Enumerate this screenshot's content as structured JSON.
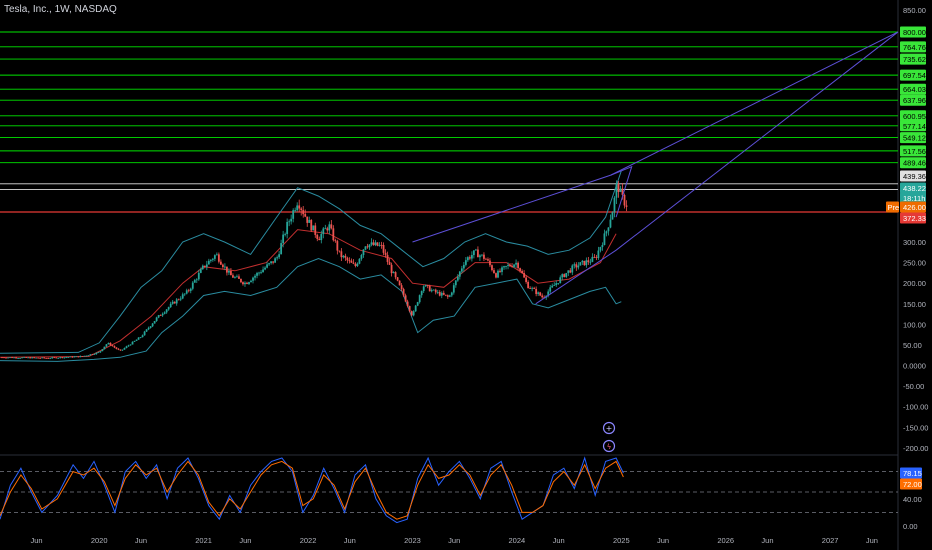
{
  "header": {
    "symbol": "Tesla, Inc., 1W, NASDAQ"
  },
  "colors": {
    "background": "#000000",
    "up": "#26a69a",
    "down": "#ef5350",
    "level": "#00e600",
    "level_tag": "#39e639",
    "red_line": "#e53935",
    "white_line": "#e0e0e0",
    "trend": "#5c4fd6",
    "band": "#2a8ca0",
    "mid": "#c22f2f",
    "stoch_k": "#2962ff",
    "stoch_d": "#ff6d00"
  },
  "chart_data": [
    {
      "type": "candlestick",
      "panel": "price",
      "y_ticks": [
        "850.00",
        "300.00",
        "250.00",
        "200.00",
        "150.00",
        "100.00",
        "50.00",
        "0.0000",
        "-50.00",
        "-100.00",
        "-150.00",
        "-200.00"
      ],
      "ylim": [
        -210,
        850
      ],
      "x_labels": [
        "Jun",
        "2020",
        "Jun",
        "2021",
        "Jun",
        "2022",
        "Jun",
        "2023",
        "Jun",
        "2024",
        "Jun",
        "2025",
        "Jun",
        "2026",
        "Jun",
        "2027",
        "Jun"
      ],
      "xlim": [
        2019.05,
        2027.65
      ],
      "horizontal_levels": [
        {
          "price": 800.0,
          "label": "800.00",
          "color": "#00e600"
        },
        {
          "price": 764.76,
          "label": "764.76",
          "color": "#00e600"
        },
        {
          "price": 735.62,
          "label": "735.62",
          "color": "#00e600"
        },
        {
          "price": 697.54,
          "label": "697.54",
          "color": "#00e600"
        },
        {
          "price": 664.03,
          "label": "664.03",
          "color": "#00e600"
        },
        {
          "price": 637.96,
          "label": "637.96",
          "color": "#00e600"
        },
        {
          "price": 600.95,
          "label": "600.95",
          "color": "#00e600"
        },
        {
          "price": 577.14,
          "label": "577.14",
          "color": "#00e600"
        },
        {
          "price": 549.12,
          "label": "549.12",
          "color": "#00e600"
        },
        {
          "price": 517.56,
          "label": "517.56",
          "color": "#00e600"
        },
        {
          "price": 489.46,
          "label": "489.46",
          "color": "#00e600"
        },
        {
          "price": 439.36,
          "label": "439.36",
          "color": "#e0e0e0"
        },
        {
          "price": 426.0,
          "label": "426.00",
          "color": "#e0e0e0"
        },
        {
          "price": 372.33,
          "label": "372.33",
          "color": "#e53935"
        }
      ],
      "price_tags": [
        {
          "label": "439.36",
          "bg": "#e0e0e0",
          "fg": "#000000"
        },
        {
          "label": "438.22",
          "bg": "#26a69a",
          "fg": "#ffffff"
        },
        {
          "label": "18:11h",
          "bg": "#26a69a",
          "fg": "#ffffff"
        },
        {
          "label": "426.00",
          "bg": "#ef6c00",
          "fg": "#ffffff",
          "prefix": "Pre"
        },
        {
          "label": "372.33",
          "bg": "#e53935",
          "fg": "#ffffff"
        }
      ],
      "close_path": [
        [
          2019.05,
          20
        ],
        [
          2019.5,
          18
        ],
        [
          2019.83,
          22
        ],
        [
          2020.0,
          32
        ],
        [
          2020.08,
          55
        ],
        [
          2020.2,
          35
        ],
        [
          2020.4,
          70
        ],
        [
          2020.55,
          115
        ],
        [
          2020.7,
          150
        ],
        [
          2020.85,
          180
        ],
        [
          2021.0,
          240
        ],
        [
          2021.12,
          270
        ],
        [
          2021.25,
          220
        ],
        [
          2021.4,
          200
        ],
        [
          2021.55,
          230
        ],
        [
          2021.7,
          260
        ],
        [
          2021.8,
          340
        ],
        [
          2021.9,
          400
        ],
        [
          2022.0,
          350
        ],
        [
          2022.1,
          310
        ],
        [
          2022.2,
          340
        ],
        [
          2022.3,
          270
        ],
        [
          2022.45,
          240
        ],
        [
          2022.55,
          295
        ],
        [
          2022.7,
          290
        ],
        [
          2022.8,
          230
        ],
        [
          2022.9,
          180
        ],
        [
          2023.0,
          120
        ],
        [
          2023.1,
          195
        ],
        [
          2023.2,
          180
        ],
        [
          2023.35,
          165
        ],
        [
          2023.5,
          255
        ],
        [
          2023.6,
          275
        ],
        [
          2023.7,
          260
        ],
        [
          2023.8,
          220
        ],
        [
          2023.9,
          240
        ],
        [
          2024.0,
          250
        ],
        [
          2024.1,
          195
        ],
        [
          2024.25,
          165
        ],
        [
          2024.3,
          180
        ],
        [
          2024.45,
          220
        ],
        [
          2024.55,
          240
        ],
        [
          2024.65,
          250
        ],
        [
          2024.75,
          260
        ],
        [
          2024.85,
          320
        ],
        [
          2024.92,
          380
        ],
        [
          2024.96,
          440
        ],
        [
          2025.0,
          410
        ],
        [
          2025.02,
          400
        ],
        [
          2025.05,
          390
        ]
      ],
      "bollinger_upper": [
        [
          2019.05,
          30
        ],
        [
          2019.8,
          32
        ],
        [
          2020.0,
          55
        ],
        [
          2020.2,
          120
        ],
        [
          2020.4,
          190
        ],
        [
          2020.6,
          230
        ],
        [
          2020.8,
          300
        ],
        [
          2021.0,
          320
        ],
        [
          2021.2,
          300
        ],
        [
          2021.45,
          270
        ],
        [
          2021.7,
          360
        ],
        [
          2021.9,
          430
        ],
        [
          2022.1,
          410
        ],
        [
          2022.3,
          380
        ],
        [
          2022.5,
          340
        ],
        [
          2022.7,
          320
        ],
        [
          2022.9,
          280
        ],
        [
          2023.1,
          240
        ],
        [
          2023.3,
          260
        ],
        [
          2023.5,
          300
        ],
        [
          2023.7,
          320
        ],
        [
          2023.9,
          300
        ],
        [
          2024.1,
          290
        ],
        [
          2024.3,
          270
        ],
        [
          2024.5,
          280
        ],
        [
          2024.7,
          310
        ],
        [
          2024.85,
          360
        ],
        [
          2025.0,
          470
        ]
      ],
      "bollinger_lower": [
        [
          2019.05,
          12
        ],
        [
          2019.6,
          10
        ],
        [
          2019.95,
          15
        ],
        [
          2020.2,
          20
        ],
        [
          2020.45,
          35
        ],
        [
          2020.6,
          80
        ],
        [
          2020.8,
          120
        ],
        [
          2021.0,
          170
        ],
        [
          2021.2,
          180
        ],
        [
          2021.45,
          170
        ],
        [
          2021.7,
          190
        ],
        [
          2021.9,
          240
        ],
        [
          2022.1,
          260
        ],
        [
          2022.3,
          240
        ],
        [
          2022.5,
          210
        ],
        [
          2022.7,
          220
        ],
        [
          2022.9,
          180
        ],
        [
          2023.05,
          80
        ],
        [
          2023.2,
          110
        ],
        [
          2023.4,
          120
        ],
        [
          2023.6,
          190
        ],
        [
          2023.8,
          200
        ],
        [
          2024.0,
          210
        ],
        [
          2024.15,
          150
        ],
        [
          2024.3,
          140
        ],
        [
          2024.5,
          160
        ],
        [
          2024.7,
          180
        ],
        [
          2024.85,
          190
        ],
        [
          2024.95,
          150
        ],
        [
          2025.0,
          155
        ]
      ],
      "bollinger_mid": [
        [
          2019.05,
          20
        ],
        [
          2019.9,
          22
        ],
        [
          2020.2,
          60
        ],
        [
          2020.5,
          120
        ],
        [
          2020.8,
          200
        ],
        [
          2021.0,
          240
        ],
        [
          2021.3,
          230
        ],
        [
          2021.6,
          250
        ],
        [
          2021.9,
          330
        ],
        [
          2022.2,
          320
        ],
        [
          2022.5,
          280
        ],
        [
          2022.8,
          260
        ],
        [
          2023.0,
          200
        ],
        [
          2023.3,
          190
        ],
        [
          2023.6,
          250
        ],
        [
          2023.9,
          250
        ],
        [
          2024.2,
          200
        ],
        [
          2024.5,
          210
        ],
        [
          2024.8,
          250
        ],
        [
          2024.95,
          320
        ]
      ],
      "trendlines": [
        [
          [
            2023.0,
            300
          ],
          [
            2024.9,
            460
          ],
          [
            2027.65,
            800
          ]
        ],
        [
          [
            2024.18,
            150
          ],
          [
            2024.95,
            280
          ],
          [
            2027.65,
            800
          ]
        ],
        [
          [
            2024.9,
            460
          ],
          [
            2025.1,
            480
          ],
          [
            2024.95,
            360
          ]
        ]
      ]
    },
    {
      "type": "line",
      "panel": "stochastic",
      "y_ticks": [
        "40.00",
        "0.00"
      ],
      "ylim": [
        0,
        100
      ],
      "dashed_levels": [
        80,
        50,
        20
      ],
      "series": [
        {
          "label": "78.15",
          "color": "#2962ff",
          "points": [
            [
              2019.05,
              10
            ],
            [
              2019.15,
              60
            ],
            [
              2019.25,
              85
            ],
            [
              2019.35,
              50
            ],
            [
              2019.45,
              20
            ],
            [
              2019.6,
              45
            ],
            [
              2019.75,
              90
            ],
            [
              2019.85,
              70
            ],
            [
              2019.95,
              95
            ],
            [
              2020.05,
              60
            ],
            [
              2020.15,
              20
            ],
            [
              2020.25,
              80
            ],
            [
              2020.35,
              95
            ],
            [
              2020.45,
              70
            ],
            [
              2020.55,
              90
            ],
            [
              2020.65,
              40
            ],
            [
              2020.75,
              85
            ],
            [
              2020.85,
              100
            ],
            [
              2020.95,
              70
            ],
            [
              2021.05,
              30
            ],
            [
              2021.15,
              10
            ],
            [
              2021.25,
              45
            ],
            [
              2021.35,
              20
            ],
            [
              2021.45,
              60
            ],
            [
              2021.55,
              80
            ],
            [
              2021.65,
              95
            ],
            [
              2021.75,
              100
            ],
            [
              2021.85,
              80
            ],
            [
              2021.95,
              20
            ],
            [
              2022.05,
              45
            ],
            [
              2022.15,
              85
            ],
            [
              2022.25,
              55
            ],
            [
              2022.35,
              20
            ],
            [
              2022.45,
              75
            ],
            [
              2022.55,
              90
            ],
            [
              2022.65,
              40
            ],
            [
              2022.75,
              15
            ],
            [
              2022.85,
              5
            ],
            [
              2022.95,
              10
            ],
            [
              2023.05,
              70
            ],
            [
              2023.15,
              100
            ],
            [
              2023.25,
              60
            ],
            [
              2023.35,
              80
            ],
            [
              2023.45,
              95
            ],
            [
              2023.55,
              70
            ],
            [
              2023.65,
              40
            ],
            [
              2023.75,
              85
            ],
            [
              2023.85,
              95
            ],
            [
              2023.95,
              50
            ],
            [
              2024.05,
              10
            ],
            [
              2024.15,
              20
            ],
            [
              2024.25,
              30
            ],
            [
              2024.35,
              75
            ],
            [
              2024.45,
              85
            ],
            [
              2024.55,
              55
            ],
            [
              2024.65,
              100
            ],
            [
              2024.75,
              45
            ],
            [
              2024.85,
              95
            ],
            [
              2024.95,
              100
            ],
            [
              2025.02,
              78
            ]
          ]
        },
        {
          "label": "72.00",
          "color": "#ff6d00",
          "points": [
            [
              2019.05,
              15
            ],
            [
              2019.15,
              50
            ],
            [
              2019.25,
              75
            ],
            [
              2019.35,
              55
            ],
            [
              2019.45,
              25
            ],
            [
              2019.6,
              40
            ],
            [
              2019.75,
              80
            ],
            [
              2019.85,
              75
            ],
            [
              2019.95,
              85
            ],
            [
              2020.05,
              65
            ],
            [
              2020.15,
              30
            ],
            [
              2020.25,
              70
            ],
            [
              2020.35,
              90
            ],
            [
              2020.45,
              75
            ],
            [
              2020.55,
              85
            ],
            [
              2020.65,
              50
            ],
            [
              2020.75,
              75
            ],
            [
              2020.85,
              95
            ],
            [
              2020.95,
              75
            ],
            [
              2021.05,
              35
            ],
            [
              2021.15,
              15
            ],
            [
              2021.25,
              40
            ],
            [
              2021.35,
              25
            ],
            [
              2021.45,
              50
            ],
            [
              2021.55,
              75
            ],
            [
              2021.65,
              90
            ],
            [
              2021.75,
              95
            ],
            [
              2021.85,
              85
            ],
            [
              2021.95,
              30
            ],
            [
              2022.05,
              40
            ],
            [
              2022.15,
              75
            ],
            [
              2022.25,
              60
            ],
            [
              2022.35,
              25
            ],
            [
              2022.45,
              65
            ],
            [
              2022.55,
              85
            ],
            [
              2022.65,
              50
            ],
            [
              2022.75,
              20
            ],
            [
              2022.85,
              10
            ],
            [
              2022.95,
              15
            ],
            [
              2023.05,
              60
            ],
            [
              2023.15,
              90
            ],
            [
              2023.25,
              70
            ],
            [
              2023.35,
              75
            ],
            [
              2023.45,
              90
            ],
            [
              2023.55,
              75
            ],
            [
              2023.65,
              45
            ],
            [
              2023.75,
              75
            ],
            [
              2023.85,
              90
            ],
            [
              2023.95,
              60
            ],
            [
              2024.05,
              20
            ],
            [
              2024.15,
              20
            ],
            [
              2024.25,
              30
            ],
            [
              2024.35,
              65
            ],
            [
              2024.45,
              80
            ],
            [
              2024.55,
              60
            ],
            [
              2024.65,
              90
            ],
            [
              2024.75,
              55
            ],
            [
              2024.85,
              85
            ],
            [
              2024.95,
              95
            ],
            [
              2025.02,
              72
            ]
          ]
        }
      ]
    }
  ]
}
